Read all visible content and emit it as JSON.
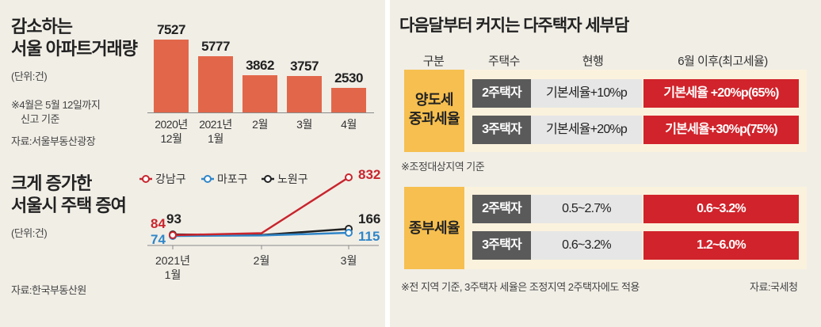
{
  "top_chart": {
    "title_line1": "감소하는",
    "title_line2": "서울 아파트거래량",
    "unit": "(단위:건)",
    "note_line1": "※4월은 5월 12일까지",
    "note_line2": "신고 기준",
    "source": "자료:서울부동산광장",
    "x_labels": [
      {
        "line1": "2020년",
        "line2": "12월"
      },
      {
        "line1": "2021년",
        "line2": "1월"
      },
      {
        "line1": "2월",
        "line2": ""
      },
      {
        "line1": "3월",
        "line2": ""
      },
      {
        "line1": "4월",
        "line2": ""
      }
    ],
    "value_labels": [
      "7527",
      "5777",
      "3862",
      "3757",
      "2530"
    ]
  },
  "bottom_chart": {
    "title_line1": "크게 증가한",
    "title_line2": "서울시 주택 증여",
    "unit": "(단위:건)",
    "source": "자료:한국부동산원",
    "legend": [
      "강남구",
      "마포구",
      "노원구"
    ],
    "x_labels": [
      {
        "line1": "2021년",
        "line2": "1월"
      },
      {
        "line1": "2월",
        "line2": ""
      },
      {
        "line1": "3월",
        "line2": ""
      }
    ],
    "point_labels": {
      "gangnam_start": "84",
      "mapo_start": "74",
      "nowon_start": "93",
      "gangnam_end": "832",
      "nowon_end": "166",
      "mapo_end": "115"
    }
  },
  "chart_data": [
    {
      "type": "bar",
      "title": "감소하는 서울 아파트거래량",
      "categories": [
        "2020년 12월",
        "2021년 1월",
        "2월",
        "3월",
        "4월"
      ],
      "values": [
        7527,
        5777,
        3862,
        3757,
        2530
      ],
      "ylabel": "(단위:건)",
      "ylim": [
        0,
        8000
      ],
      "grid": false
    },
    {
      "type": "line",
      "title": "크게 증가한 서울시 주택 증여",
      "x": [
        "2021년 1월",
        "2월",
        "3월"
      ],
      "series": [
        {
          "name": "강남구",
          "values": [
            84,
            110,
            832
          ],
          "color": "#c8252d"
        },
        {
          "name": "마포구",
          "values": [
            74,
            80,
            115
          ],
          "color": "#2f86c8"
        },
        {
          "name": "노원구",
          "values": [
            93,
            85,
            166
          ],
          "color": "#222222"
        }
      ],
      "ylabel": "(단위:건)",
      "ylim": [
        0,
        900
      ],
      "legend": "top",
      "grid": false
    }
  ],
  "tax_table": {
    "title": "다음달부터 커지는 다주택자 세부담",
    "headers": [
      "구분",
      "주택수",
      "현행",
      "6월 이후(최고세율)"
    ],
    "groups": [
      {
        "category_line1": "양도세",
        "category_line2": "중과세율",
        "rows": [
          {
            "houses": "2주택자",
            "current": "기본세율+10%p",
            "after": "기본세율 +20%p(65%)"
          },
          {
            "houses": "3주택자",
            "current": "기본세율+20%p",
            "after": "기본세율+30%p(75%)"
          }
        ],
        "note": "※조정대상지역 기준"
      },
      {
        "category_line1": "종부세율",
        "category_line2": "",
        "rows": [
          {
            "houses": "2주택자",
            "current": "0.5~2.7%",
            "after": "0.6~3.2%"
          },
          {
            "houses": "3주택자",
            "current": "0.6~3.2%",
            "after": "1.2~6.0%"
          }
        ]
      }
    ],
    "footnote": "※전 지역 기준, 3주택자 세율은 조정지역 2주택자에도 적용",
    "source": "자료:국세청"
  },
  "colors": {
    "bar": "#e2674a",
    "red": "#d1232b",
    "dark_cell": "#5a5a5a",
    "light_cell": "#e6e6e6",
    "category": "#f6bf4f",
    "panel_bg": "#f1eee6"
  }
}
